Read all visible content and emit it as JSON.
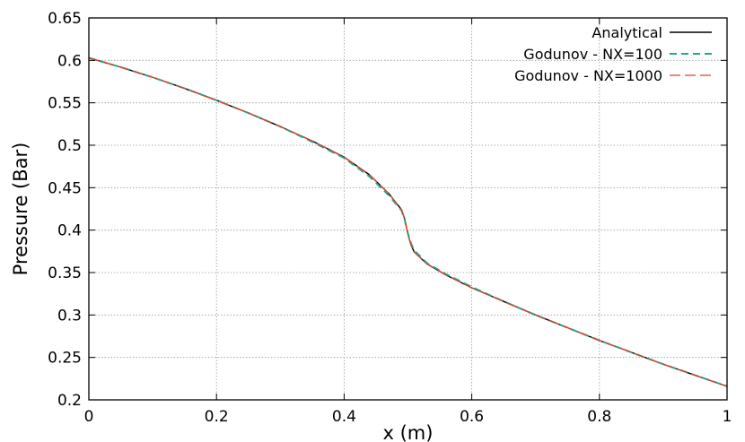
{
  "chart_data": {
    "type": "line",
    "title": "",
    "xlabel": "x (m)",
    "ylabel": "Pressure (Bar)",
    "xlim": [
      0,
      1
    ],
    "ylim": [
      0.2,
      0.65
    ],
    "xticks": [
      0,
      0.2,
      0.4,
      0.6,
      0.8,
      1
    ],
    "xtick_labels": [
      "0",
      "0.2",
      "0.4",
      "0.6",
      "0.8",
      "1"
    ],
    "yticks": [
      0.2,
      0.25,
      0.3,
      0.35,
      0.4,
      0.45,
      0.5,
      0.55,
      0.6,
      0.65
    ],
    "ytick_labels": [
      "0.2",
      "0.25",
      "0.3",
      "0.35",
      "0.4",
      "0.45",
      "0.5",
      "0.55",
      "0.6",
      "0.65"
    ],
    "grid": true,
    "legend_position": "top-right",
    "series": [
      {
        "name": "Analytical",
        "color": "#000000",
        "dash": "solid",
        "x": [
          0,
          0.05,
          0.1,
          0.15,
          0.2,
          0.25,
          0.3,
          0.35,
          0.4,
          0.44,
          0.47,
          0.49,
          0.495,
          0.5,
          0.505,
          0.51,
          0.53,
          0.56,
          0.6,
          0.65,
          0.7,
          0.75,
          0.8,
          0.85,
          0.9,
          0.95,
          1.0
        ],
        "y": [
          0.603,
          0.592,
          0.58,
          0.567,
          0.553,
          0.538,
          0.522,
          0.505,
          0.486,
          0.465,
          0.443,
          0.424,
          0.413,
          0.395,
          0.382,
          0.374,
          0.36,
          0.347,
          0.332,
          0.316,
          0.3,
          0.285,
          0.27,
          0.256,
          0.242,
          0.229,
          0.216
        ]
      },
      {
        "name": "Godunov - NX=100",
        "color": "#20a98a",
        "dash": "long-dash",
        "x": [
          0,
          0.05,
          0.1,
          0.15,
          0.2,
          0.25,
          0.3,
          0.35,
          0.4,
          0.44,
          0.47,
          0.49,
          0.495,
          0.5,
          0.505,
          0.51,
          0.53,
          0.56,
          0.6,
          0.65,
          0.7,
          0.75,
          0.8,
          0.85,
          0.9,
          0.95,
          1.0
        ],
        "y": [
          0.603,
          0.592,
          0.58,
          0.567,
          0.553,
          0.538,
          0.522,
          0.504,
          0.485,
          0.463,
          0.441,
          0.423,
          0.412,
          0.396,
          0.384,
          0.376,
          0.361,
          0.348,
          0.333,
          0.316,
          0.3,
          0.285,
          0.27,
          0.256,
          0.242,
          0.229,
          0.216
        ]
      },
      {
        "name": "Godunov - NX=1000",
        "color": "#e0412c",
        "dash": "dash",
        "x": [
          0,
          0.05,
          0.1,
          0.15,
          0.2,
          0.25,
          0.3,
          0.35,
          0.4,
          0.44,
          0.47,
          0.49,
          0.495,
          0.5,
          0.505,
          0.51,
          0.53,
          0.56,
          0.6,
          0.65,
          0.7,
          0.75,
          0.8,
          0.85,
          0.9,
          0.95,
          1.0
        ],
        "y": [
          0.603,
          0.592,
          0.58,
          0.567,
          0.553,
          0.538,
          0.522,
          0.505,
          0.486,
          0.465,
          0.443,
          0.424,
          0.413,
          0.395,
          0.382,
          0.374,
          0.36,
          0.347,
          0.332,
          0.316,
          0.3,
          0.285,
          0.27,
          0.256,
          0.242,
          0.229,
          0.216
        ]
      }
    ]
  }
}
